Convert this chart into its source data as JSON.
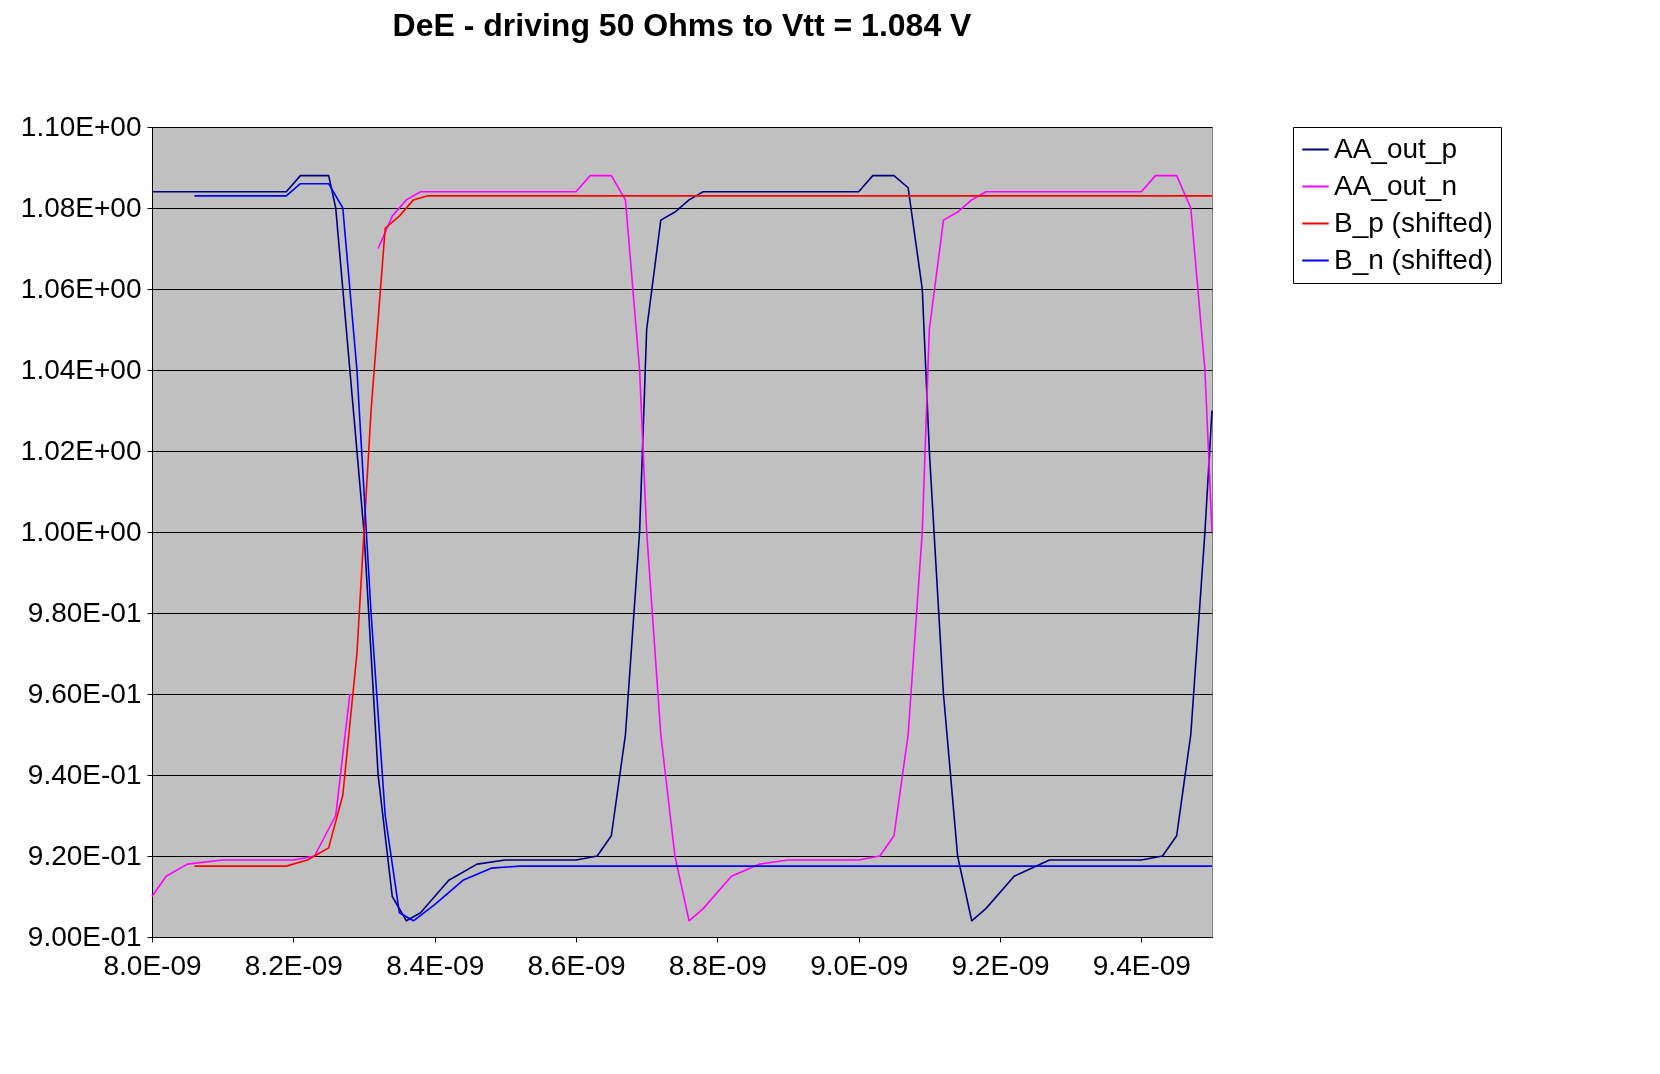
{
  "chart_data": {
    "type": "line",
    "title": "DeE - driving 50 Ohms to Vtt = 1.084 V",
    "legend": "right",
    "grid": "y",
    "marker": "none",
    "line_style": "solid",
    "xlim": [
      8e-09,
      9.5e-09
    ],
    "xticks": [
      {
        "value": 8e-09,
        "label": "8.0E-09"
      },
      {
        "value": 8.2e-09,
        "label": "8.2E-09"
      },
      {
        "value": 8.4e-09,
        "label": "8.4E-09"
      },
      {
        "value": 8.6e-09,
        "label": "8.6E-09"
      },
      {
        "value": 8.8e-09,
        "label": "8.8E-09"
      },
      {
        "value": 9e-09,
        "label": "9.0E-09"
      },
      {
        "value": 9.2e-09,
        "label": "9.2E-09"
      },
      {
        "value": 9.4e-09,
        "label": "9.4E-09"
      }
    ],
    "ylim": [
      0.9,
      1.1
    ],
    "yticks": [
      {
        "value": 0.9,
        "label": "9.00E-01"
      },
      {
        "value": 0.92,
        "label": "9.20E-01"
      },
      {
        "value": 0.94,
        "label": "9.40E-01"
      },
      {
        "value": 0.96,
        "label": "9.60E-01"
      },
      {
        "value": 0.98,
        "label": "9.80E-01"
      },
      {
        "value": 1.0,
        "label": "1.00E+00"
      },
      {
        "value": 1.02,
        "label": "1.02E+00"
      },
      {
        "value": 1.04,
        "label": "1.04E+00"
      },
      {
        "value": 1.06,
        "label": "1.06E+00"
      },
      {
        "value": 1.08,
        "label": "1.08E+00"
      },
      {
        "value": 1.1,
        "label": "1.10E+00"
      }
    ],
    "series": [
      {
        "name": "AA_out_p",
        "color": "#000080",
        "x": [
          8e-09,
          8.19e-09,
          8.21e-09,
          8.25e-09,
          8.26e-09,
          8.28e-09,
          8.3e-09,
          8.32e-09,
          8.34e-09,
          8.36e-09,
          8.38e-09,
          8.42e-09,
          8.46e-09,
          8.5e-09,
          8.6e-09,
          8.63e-09,
          8.65e-09,
          8.67e-09,
          8.69e-09,
          8.7e-09,
          8.72e-09,
          8.74e-09,
          8.76e-09,
          8.78e-09,
          9e-09,
          9.02e-09,
          9.05e-09,
          9.07e-09,
          9.09e-09,
          9.1e-09,
          9.12e-09,
          9.14e-09,
          9.16e-09,
          9.18e-09,
          9.22e-09,
          9.27e-09,
          9.4e-09,
          9.43e-09,
          9.45e-09,
          9.47e-09,
          9.49e-09,
          9.5e-09
        ],
        "values": [
          1.084,
          1.084,
          1.088,
          1.088,
          1.08,
          1.04,
          1.0,
          0.94,
          0.91,
          0.904,
          0.906,
          0.914,
          0.918,
          0.919,
          0.919,
          0.92,
          0.925,
          0.95,
          1.0,
          1.05,
          1.077,
          1.079,
          1.082,
          1.084,
          1.084,
          1.088,
          1.088,
          1.085,
          1.06,
          1.02,
          0.96,
          0.92,
          0.904,
          0.907,
          0.915,
          0.919,
          0.919,
          0.92,
          0.925,
          0.95,
          1.0,
          1.03
        ]
      },
      {
        "name": "AA_out_n",
        "color": "#ff00ff",
        "x": [
          8e-09,
          8.02e-09,
          8.05e-09,
          8.1e-09,
          8.2e-09,
          8.23e-09,
          8.26e-09,
          8.28e-09,
          8.3e-09,
          8.32e-09,
          8.34e-09,
          8.36e-09,
          8.38e-09,
          8.6e-09,
          8.62e-09,
          8.65e-09,
          8.67e-09,
          8.69e-09,
          8.7e-09,
          8.72e-09,
          8.74e-09,
          8.76e-09,
          8.78e-09,
          8.82e-09,
          8.86e-09,
          8.9e-09,
          9e-09,
          9.03e-09,
          9.05e-09,
          9.07e-09,
          9.09e-09,
          9.1e-09,
          9.12e-09,
          9.14e-09,
          9.16e-09,
          9.18e-09,
          9.4e-09,
          9.42e-09,
          9.45e-09,
          9.47e-09,
          9.49e-09,
          9.5e-09
        ],
        "values": [
          0.91,
          0.915,
          0.918,
          0.919,
          0.919,
          0.92,
          0.93,
          0.96,
          null,
          1.07,
          1.078,
          1.082,
          1.084,
          1.084,
          1.088,
          1.088,
          1.082,
          1.04,
          1.0,
          0.95,
          0.92,
          0.904,
          0.907,
          0.915,
          0.918,
          0.919,
          0.919,
          0.92,
          0.925,
          0.95,
          1.0,
          1.05,
          1.077,
          1.079,
          1.082,
          1.084,
          1.084,
          1.088,
          1.088,
          1.08,
          1.04,
          1.0
        ]
      },
      {
        "name": "B_p (shifted)",
        "color": "#ff0000",
        "x": [
          8.06e-09,
          8.19e-09,
          8.22e-09,
          8.25e-09,
          8.27e-09,
          8.29e-09,
          8.31e-09,
          8.33e-09,
          8.35e-09,
          8.37e-09,
          8.39e-09,
          9.5e-09
        ],
        "values": [
          0.9175,
          0.9175,
          0.919,
          0.922,
          0.935,
          0.97,
          1.03,
          1.075,
          1.078,
          1.082,
          1.083,
          1.083
        ]
      },
      {
        "name": "B_n (shifted)",
        "color": "#0000ff",
        "x": [
          8.06e-09,
          8.19e-09,
          8.21e-09,
          8.25e-09,
          8.27e-09,
          8.29e-09,
          8.31e-09,
          8.33e-09,
          8.35e-09,
          8.37e-09,
          8.4e-09,
          8.44e-09,
          8.48e-09,
          8.52e-09,
          9.5e-09
        ],
        "values": [
          1.083,
          1.083,
          1.086,
          1.086,
          1.08,
          1.04,
          0.98,
          0.93,
          0.906,
          0.904,
          0.908,
          0.914,
          0.917,
          0.9175,
          0.9175
        ]
      }
    ]
  }
}
